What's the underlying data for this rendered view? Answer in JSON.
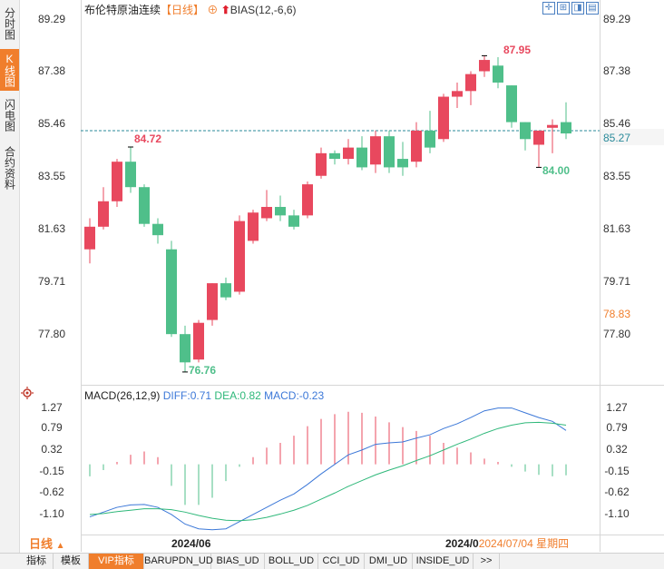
{
  "left_tabs": [
    {
      "label": "分时图",
      "active": false
    },
    {
      "label": "K线图",
      "active": true
    },
    {
      "label": "闪电图",
      "active": false
    },
    {
      "label": "合约资料",
      "active": false
    }
  ],
  "header": {
    "instrument": "布伦特原油连续",
    "period": "【日线】",
    "indicator": "BIAS(12,-6,6)"
  },
  "toolbar_icons": [
    "crosshair-icon",
    "zoom-fit-icon",
    "zoom-in-icon",
    "zoom-out-icon"
  ],
  "price_axis": {
    "ticks": [
      "89.29",
      "87.38",
      "85.46",
      "83.55",
      "81.63",
      "79.71",
      "77.80"
    ],
    "current_price": "85.27",
    "marker_price": "78.83"
  },
  "annotations": {
    "high_label": "87.95",
    "low_label": "76.76",
    "left_high_label": "84.72",
    "recent_low_label": "84.00"
  },
  "macd": {
    "title": "MACD(26,12,9)",
    "diff": "DIFF:0.71",
    "dea": "DEA:0.82",
    "macd": "MACD:-0.23",
    "ticks": [
      "1.27",
      "0.79",
      "0.32",
      "-0.15",
      "-0.62",
      "-1.10"
    ]
  },
  "xaxis": {
    "label_1": "2024/06",
    "label_2": "2024/0",
    "cursor_date": "2024/07/04 星期四"
  },
  "period_selector": "日线",
  "bottom_tabs": [
    "指标",
    "模板",
    "VIP指标",
    "BARUPDN_UD",
    "BIAS_UD",
    "BOLL_UD",
    "CCI_UD",
    "DMI_UD",
    "INSIDE_UD",
    ">>"
  ],
  "colors": {
    "up": "#e8485e",
    "down": "#4fbf8a",
    "diff": "#3c78d8",
    "dea": "#2fb87a",
    "accent": "#f07e2c"
  },
  "chart_data": {
    "type": "candlestick",
    "ylim": [
      76.5,
      89.6
    ],
    "candles": [
      {
        "o": 81.1,
        "h": 82.2,
        "l": 80.6,
        "c": 81.9
      },
      {
        "o": 81.9,
        "h": 83.3,
        "l": 81.8,
        "c": 82.8
      },
      {
        "o": 82.8,
        "h": 84.3,
        "l": 82.6,
        "c": 84.2
      },
      {
        "o": 84.2,
        "h": 84.72,
        "l": 83.1,
        "c": 83.3
      },
      {
        "o": 83.3,
        "h": 83.4,
        "l": 81.9,
        "c": 82.0
      },
      {
        "o": 82.0,
        "h": 82.2,
        "l": 81.3,
        "c": 81.6
      },
      {
        "o": 81.1,
        "h": 81.4,
        "l": 78.0,
        "c": 78.1
      },
      {
        "o": 78.1,
        "h": 78.4,
        "l": 76.76,
        "c": 77.1
      },
      {
        "o": 77.2,
        "h": 78.6,
        "l": 77.1,
        "c": 78.5
      },
      {
        "o": 78.6,
        "h": 79.9,
        "l": 78.4,
        "c": 79.9
      },
      {
        "o": 79.9,
        "h": 80.1,
        "l": 79.3,
        "c": 79.4
      },
      {
        "o": 79.6,
        "h": 82.3,
        "l": 79.5,
        "c": 82.1
      },
      {
        "o": 81.4,
        "h": 82.5,
        "l": 81.3,
        "c": 82.4
      },
      {
        "o": 82.2,
        "h": 83.2,
        "l": 82.1,
        "c": 82.6
      },
      {
        "o": 82.6,
        "h": 83.0,
        "l": 82.1,
        "c": 82.3
      },
      {
        "o": 82.3,
        "h": 82.5,
        "l": 81.8,
        "c": 81.9
      },
      {
        "o": 82.3,
        "h": 83.5,
        "l": 82.2,
        "c": 83.4
      },
      {
        "o": 83.7,
        "h": 84.7,
        "l": 83.6,
        "c": 84.5
      },
      {
        "o": 84.5,
        "h": 84.6,
        "l": 84.1,
        "c": 84.3
      },
      {
        "o": 84.3,
        "h": 85.0,
        "l": 84.1,
        "c": 84.7
      },
      {
        "o": 84.7,
        "h": 85.1,
        "l": 83.9,
        "c": 84.0
      },
      {
        "o": 84.1,
        "h": 85.3,
        "l": 83.8,
        "c": 85.1
      },
      {
        "o": 85.1,
        "h": 85.3,
        "l": 83.8,
        "c": 84.0
      },
      {
        "o": 84.3,
        "h": 84.9,
        "l": 83.7,
        "c": 84.0
      },
      {
        "o": 84.2,
        "h": 85.6,
        "l": 84.0,
        "c": 85.3
      },
      {
        "o": 85.3,
        "h": 86.0,
        "l": 84.5,
        "c": 84.7
      },
      {
        "o": 85.0,
        "h": 86.6,
        "l": 84.9,
        "c": 86.5
      },
      {
        "o": 86.5,
        "h": 87.0,
        "l": 86.1,
        "c": 86.7
      },
      {
        "o": 86.7,
        "h": 87.4,
        "l": 86.2,
        "c": 87.3
      },
      {
        "o": 87.4,
        "h": 87.95,
        "l": 87.2,
        "c": 87.8
      },
      {
        "o": 87.6,
        "h": 87.9,
        "l": 86.8,
        "c": 87.0
      },
      {
        "o": 86.9,
        "h": 86.9,
        "l": 85.4,
        "c": 85.6
      },
      {
        "o": 85.6,
        "h": 85.6,
        "l": 84.6,
        "c": 85.0
      },
      {
        "o": 84.8,
        "h": 85.2,
        "l": 84.0,
        "c": 85.3
      },
      {
        "o": 85.4,
        "h": 85.7,
        "l": 84.5,
        "c": 85.5
      },
      {
        "o": 85.6,
        "h": 86.3,
        "l": 85.0,
        "c": 85.2
      }
    ],
    "macd": {
      "ylim": [
        -1.45,
        1.4
      ],
      "hist": [
        -0.25,
        -0.12,
        0.05,
        0.2,
        0.27,
        0.15,
        -0.45,
        -0.85,
        -0.85,
        -0.7,
        -0.35,
        -0.05,
        0.15,
        0.35,
        0.45,
        0.6,
        0.8,
        0.95,
        1.05,
        1.1,
        1.08,
        1.0,
        0.88,
        0.78,
        0.7,
        0.6,
        0.45,
        0.35,
        0.25,
        0.12,
        0.05,
        -0.05,
        -0.15,
        -0.22,
        -0.25,
        -0.23
      ],
      "diff": [
        -1.1,
        -1.0,
        -0.9,
        -0.85,
        -0.84,
        -0.9,
        -1.05,
        -1.25,
        -1.35,
        -1.37,
        -1.35,
        -1.2,
        -1.05,
        -0.9,
        -0.75,
        -0.62,
        -0.42,
        -0.2,
        0.0,
        0.2,
        0.3,
        0.42,
        0.45,
        0.47,
        0.55,
        0.62,
        0.75,
        0.85,
        0.98,
        1.12,
        1.18,
        1.18,
        1.08,
        0.98,
        0.9,
        0.71
      ],
      "dea": [
        -1.05,
        -1.03,
        -0.99,
        -0.96,
        -0.93,
        -0.93,
        -0.95,
        -1.0,
        -1.07,
        -1.13,
        -1.17,
        -1.18,
        -1.16,
        -1.11,
        -1.04,
        -0.96,
        -0.86,
        -0.73,
        -0.6,
        -0.46,
        -0.34,
        -0.22,
        -0.12,
        -0.03,
        0.08,
        0.18,
        0.3,
        0.42,
        0.53,
        0.65,
        0.75,
        0.82,
        0.87,
        0.88,
        0.86,
        0.82
      ]
    }
  }
}
